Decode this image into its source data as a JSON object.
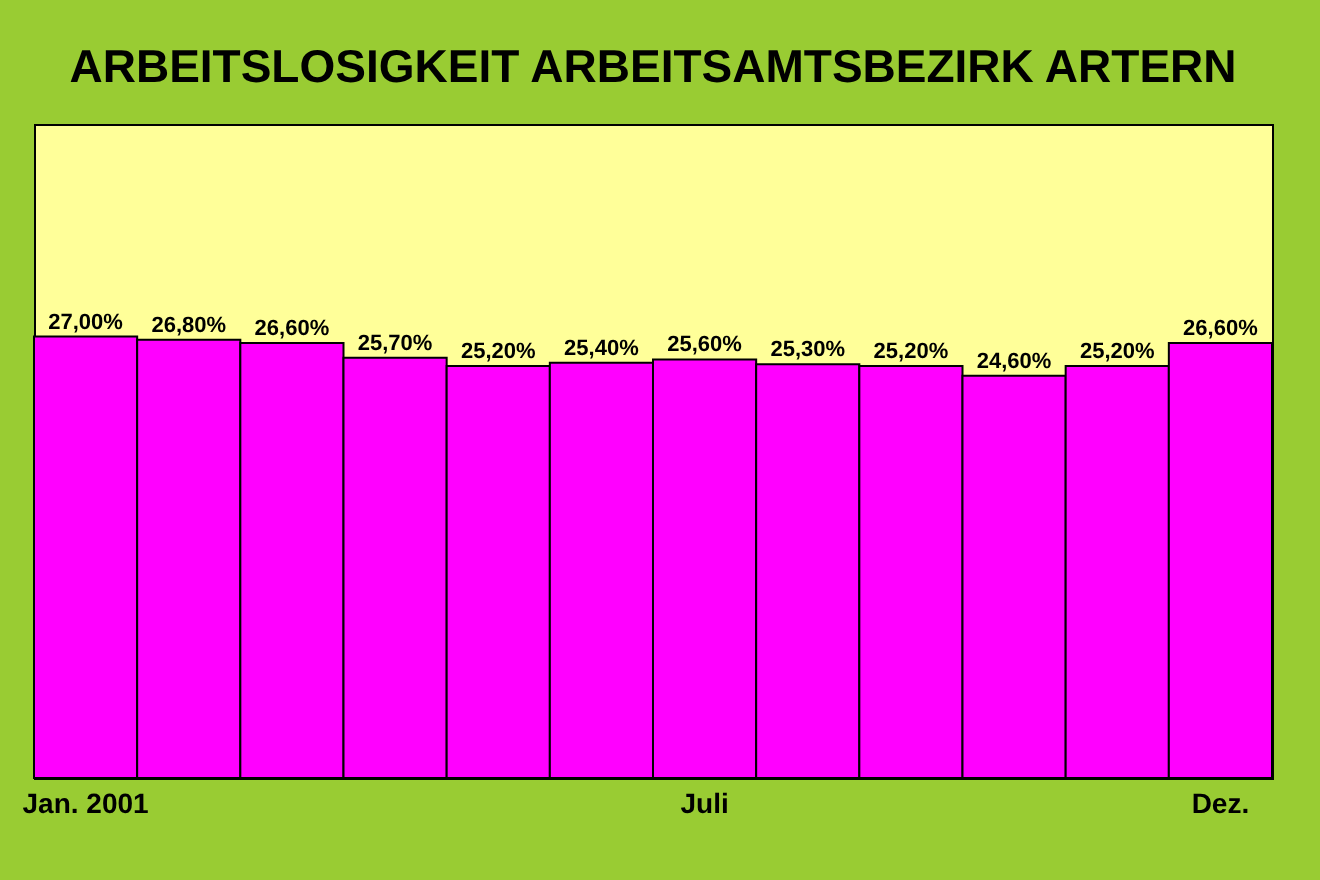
{
  "chart_data": {
    "type": "bar",
    "title": "ARBEITSLOSIGKEIT ARBEITSAMTSBEZIRK ARTERN",
    "categories": [
      "Jan. 2001",
      null,
      null,
      null,
      null,
      null,
      "Juli",
      null,
      null,
      null,
      null,
      "Dez."
    ],
    "values": [
      27.0,
      26.8,
      26.6,
      25.7,
      25.2,
      25.4,
      25.6,
      25.3,
      25.2,
      24.6,
      25.2,
      26.6
    ],
    "value_labels": [
      "27,00%",
      "26,80%",
      "26,60%",
      "25,70%",
      "25,20%",
      "25,40%",
      "25,60%",
      "25,30%",
      "25,20%",
      "24,60%",
      "25,20%",
      "26,60%"
    ],
    "color": "#ff00ff",
    "ylim": [
      0,
      40
    ],
    "grid": false
  }
}
